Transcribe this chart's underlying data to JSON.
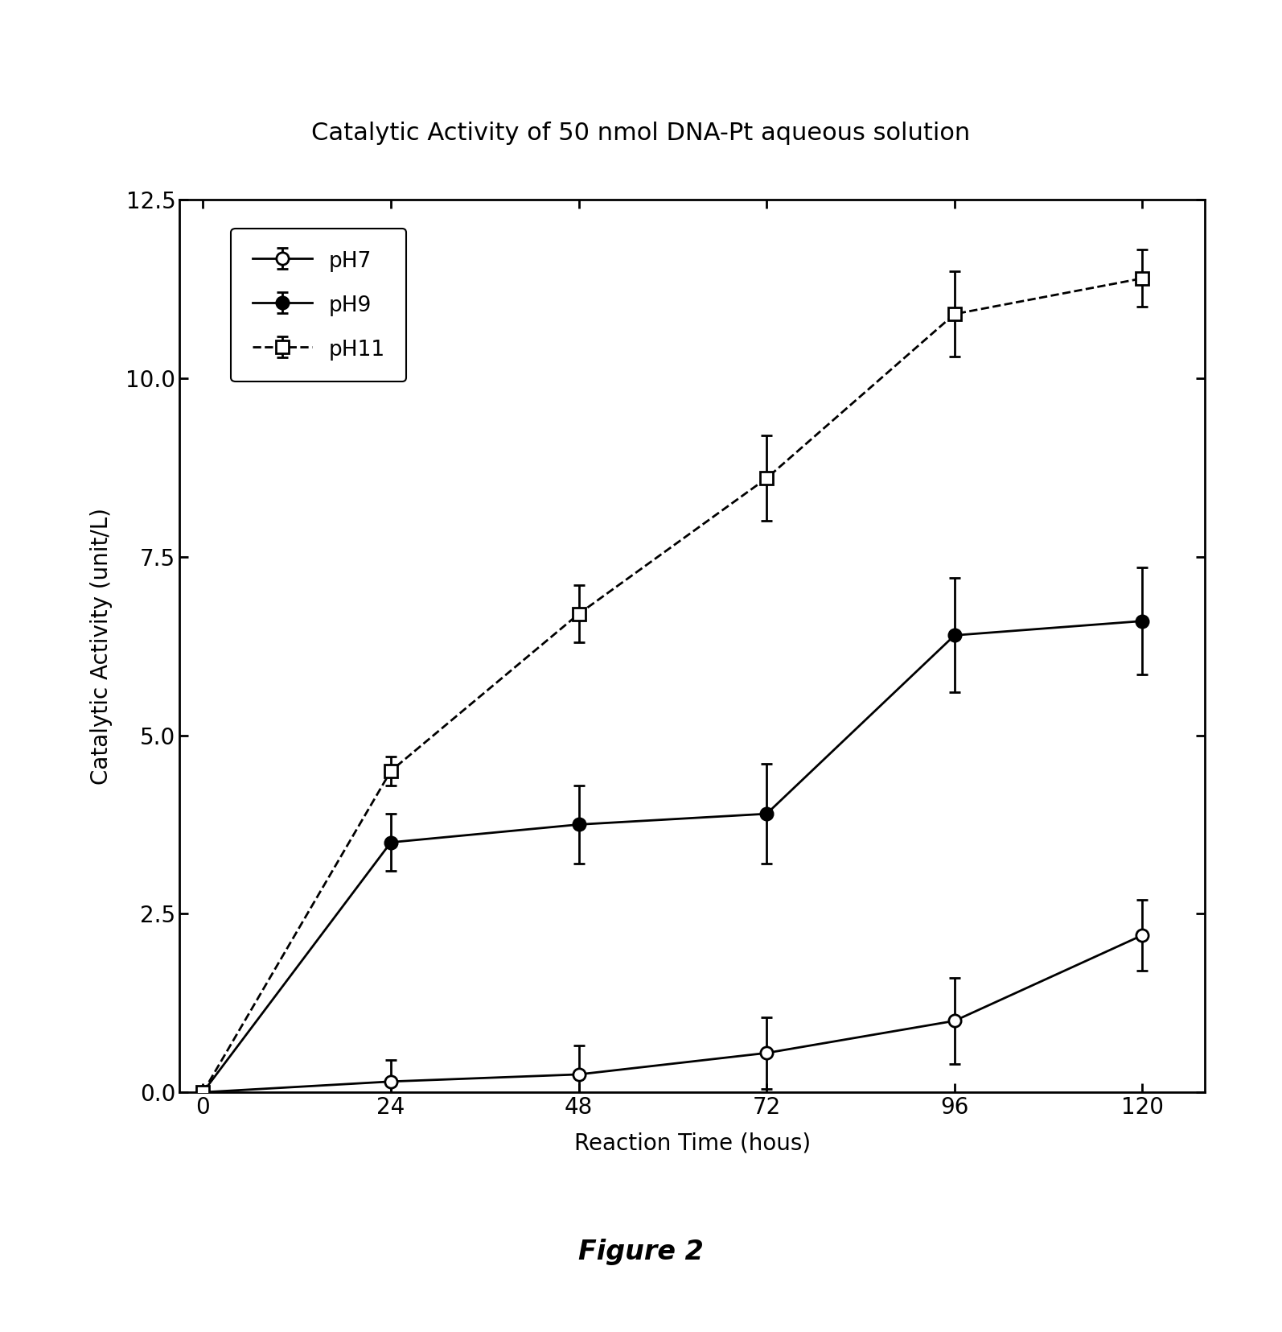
{
  "title": "Catalytic Activity of 50 nmol DNA-Pt aqueous solution",
  "xlabel": "Reaction Time (hous)",
  "ylabel": "Catalytic Activity (unit/L)",
  "figure_caption": "Figure 2",
  "x": [
    0,
    24,
    48,
    72,
    96,
    120
  ],
  "pH7_y": [
    0.0,
    0.15,
    0.25,
    0.55,
    1.0,
    2.2
  ],
  "pH7_yerr": [
    0.0,
    0.3,
    0.4,
    0.5,
    0.6,
    0.5
  ],
  "pH9_y": [
    0.0,
    3.5,
    3.75,
    3.9,
    6.4,
    6.6
  ],
  "pH9_yerr": [
    0.0,
    0.4,
    0.55,
    0.7,
    0.8,
    0.75
  ],
  "pH11_y": [
    0.0,
    4.5,
    6.7,
    8.6,
    10.9,
    11.4
  ],
  "pH11_yerr": [
    0.0,
    0.2,
    0.4,
    0.6,
    0.6,
    0.4
  ],
  "ylim": [
    0,
    12.5
  ],
  "xlim": [
    -3,
    128
  ],
  "yticks": [
    0.0,
    2.5,
    5.0,
    7.5,
    10.0,
    12.5
  ],
  "xticks": [
    0,
    24,
    48,
    72,
    96,
    120
  ],
  "background_color": "#ffffff",
  "line_color": "#000000",
  "title_fontsize": 22,
  "label_fontsize": 20,
  "tick_fontsize": 20,
  "legend_fontsize": 19,
  "caption_fontsize": 24
}
